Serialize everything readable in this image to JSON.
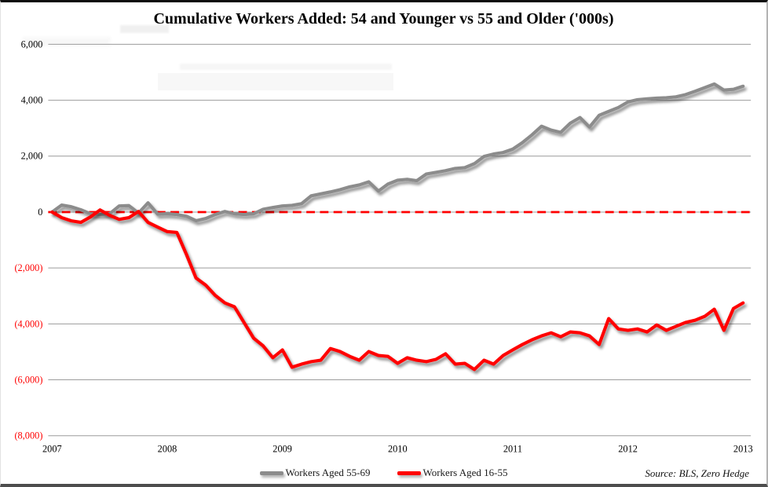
{
  "frame": {
    "title": "Cumulative Workers Added: 54 and Younger vs 55 and Older ('000s)",
    "source_note": "Source: BLS, Zero Hedge"
  },
  "chart_data": {
    "type": "line",
    "title": "Cumulative Workers Added: 54 and Younger vs 55 and Older ('000s)",
    "x": {
      "start_year": 2007,
      "end_year": 2013,
      "interval": "monthly"
    },
    "x_tick_labels": [
      "2007",
      "2008",
      "2009",
      "2010",
      "2011",
      "2012",
      "2013"
    ],
    "y_ticks": [
      {
        "label": "6,000",
        "value": 6000,
        "color": "#000000"
      },
      {
        "label": "4,000",
        "value": 4000,
        "color": "#000000"
      },
      {
        "label": "2,000",
        "value": 2000,
        "color": "#000000"
      },
      {
        "label": "0",
        "value": 0,
        "color": "#000000"
      },
      {
        "label": "(2,000)",
        "value": -2000,
        "color": "#ff0000"
      },
      {
        "label": "(4,000)",
        "value": -4000,
        "color": "#ff0000"
      },
      {
        "label": "(6,000)",
        "value": -6000,
        "color": "#ff0000"
      },
      {
        "label": "(8,000)",
        "value": -8000,
        "color": "#ff0000"
      }
    ],
    "ylim": [
      -8000,
      6000
    ],
    "grid": true,
    "gridline_color": "#9c9c9c",
    "zero_line": {
      "style": "dashed",
      "color": "#ff0000"
    },
    "legend_position": "bottom",
    "series": [
      {
        "name": "Workers Aged 55-69",
        "color": "#8c8c8c",
        "values": [
          0,
          250,
          190,
          80,
          -60,
          -90,
          -60,
          220,
          230,
          -35,
          330,
          -75,
          -60,
          -90,
          -150,
          -310,
          -230,
          -90,
          20,
          -60,
          -90,
          -60,
          100,
          160,
          220,
          240,
          300,
          580,
          650,
          720,
          800,
          900,
          970,
          1080,
          750,
          1000,
          1140,
          1170,
          1120,
          1360,
          1420,
          1480,
          1560,
          1590,
          1730,
          1990,
          2075,
          2130,
          2250,
          2480,
          2760,
          3070,
          2930,
          2850,
          3180,
          3380,
          3040,
          3460,
          3600,
          3740,
          3940,
          4020,
          4050,
          4075,
          4090,
          4120,
          4200,
          4320,
          4450,
          4580,
          4360,
          4390,
          4500
        ]
      },
      {
        "name": "Workers Aged 16-55",
        "color": "#ff0000",
        "values": [
          0,
          -200,
          -315,
          -370,
          -175,
          75,
          -120,
          -260,
          -200,
          20,
          -370,
          -540,
          -700,
          -730,
          -1520,
          -2360,
          -2610,
          -2980,
          -3250,
          -3390,
          -3950,
          -4510,
          -4790,
          -5210,
          -4930,
          -5550,
          -5440,
          -5350,
          -5300,
          -4880,
          -4990,
          -5160,
          -5300,
          -4990,
          -5130,
          -5160,
          -5410,
          -5210,
          -5300,
          -5350,
          -5270,
          -5070,
          -5440,
          -5410,
          -5630,
          -5300,
          -5440,
          -5130,
          -4930,
          -4740,
          -4570,
          -4430,
          -4320,
          -4460,
          -4290,
          -4320,
          -4430,
          -4740,
          -3810,
          -4180,
          -4230,
          -4180,
          -4290,
          -4040,
          -4230,
          -4090,
          -3950,
          -3870,
          -3730,
          -3475,
          -4230,
          -3450,
          -3250
        ]
      }
    ]
  }
}
